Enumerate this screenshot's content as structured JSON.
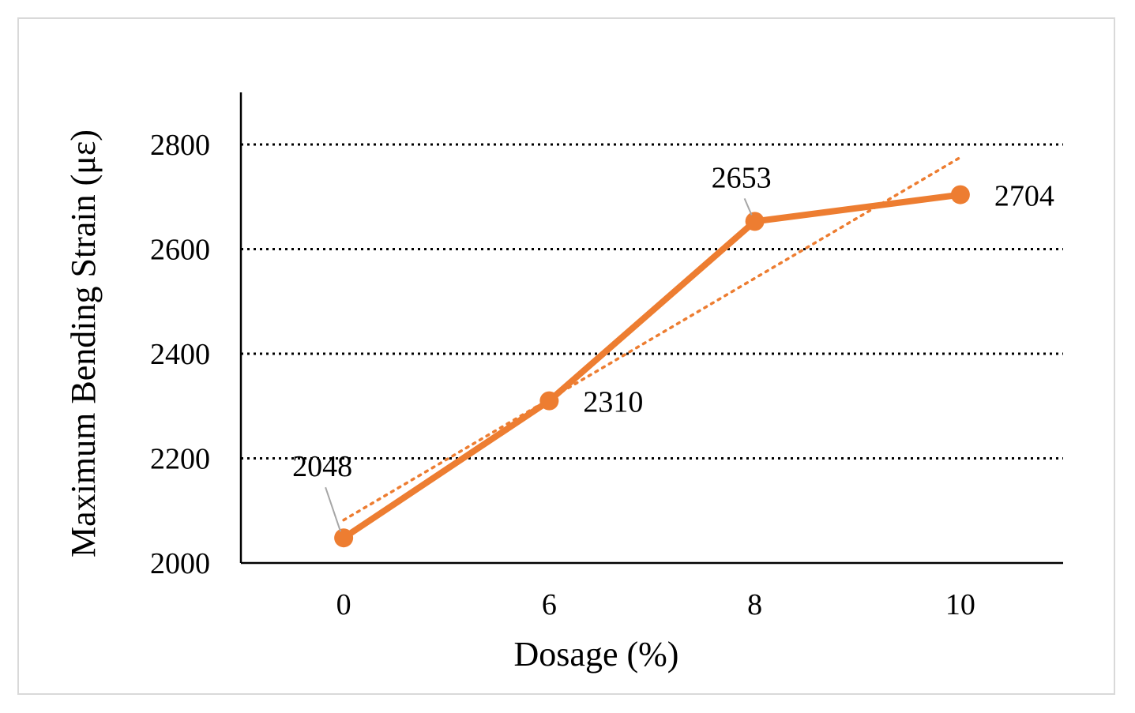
{
  "chart_data": {
    "type": "line",
    "categories": [
      "0",
      "6",
      "8",
      "10"
    ],
    "series": [
      {
        "values": [
          2048,
          2310,
          2653,
          2704
        ],
        "color": "#ed7d31",
        "data_labels": [
          "2048",
          "2310",
          "2653",
          "2704"
        ]
      }
    ],
    "trendline": {
      "type": "linear",
      "style": "dotted",
      "color": "#ed7d31"
    },
    "xlabel": "Dosage (%)",
    "ylabel": "Maximum Bending Strain (με)",
    "ylim": [
      2000,
      2800
    ],
    "yticks": [
      "2000",
      "2200",
      "2400",
      "2600",
      "2800"
    ],
    "grid": "horizontal dotted",
    "colors": {
      "series": "#ed7d31",
      "grid": "#000000",
      "axis": "#000000",
      "leader_line": "#a6a6a6",
      "frame_border": "#d9d9d9"
    }
  }
}
